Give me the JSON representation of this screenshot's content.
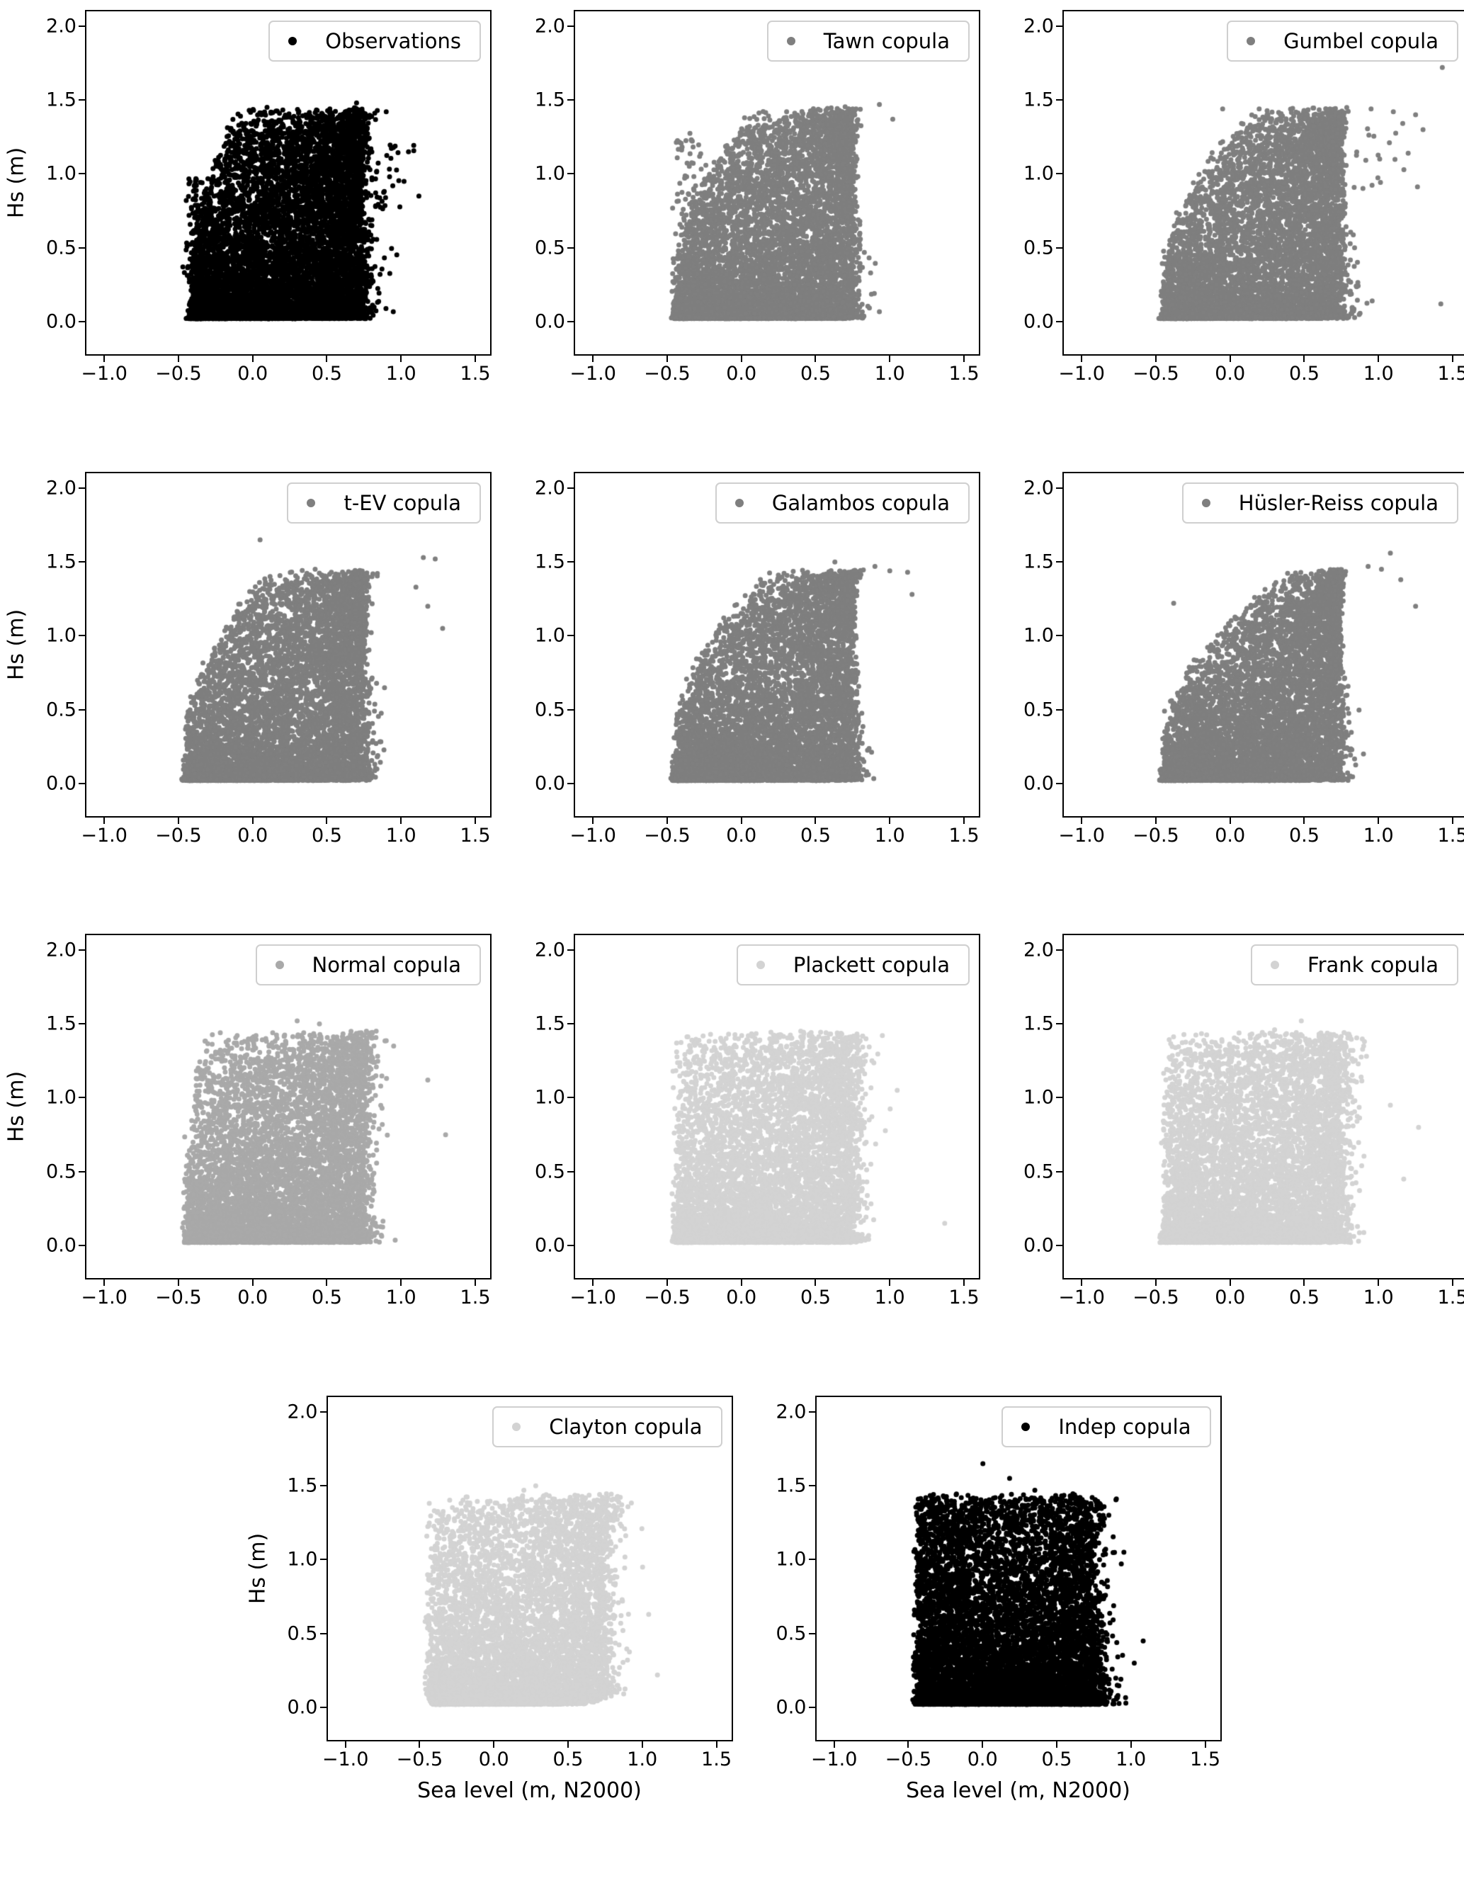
{
  "figure": {
    "background": "#ffffff",
    "description": "Grid of 11 scatter subplots comparing observed significant wave height vs sea level with simulations from ten copula models"
  },
  "axes": {
    "x_label": "Sea level (m, N2000)",
    "y_label": "Hs (m)",
    "xlim": [
      -1.12,
      1.6
    ],
    "ylim": [
      -0.22,
      2.1
    ],
    "x_tick_values": [
      -1.0,
      -0.5,
      0.0,
      0.5,
      1.0,
      1.5
    ],
    "x_tick_labels": [
      "−1.0",
      "−0.5",
      "0.0",
      "0.5",
      "1.0",
      "1.5"
    ],
    "y_tick_values": [
      0.0,
      0.5,
      1.0,
      1.5,
      2.0
    ],
    "y_tick_labels": [
      "0.0",
      "0.5",
      "1.0",
      "1.5",
      "2.0"
    ],
    "grid": false,
    "legend_position": "upper right"
  },
  "layout": {
    "rows": [
      [
        0,
        1,
        2
      ],
      [
        3,
        4,
        5
      ],
      [
        6,
        7,
        8
      ],
      [
        9,
        10
      ]
    ]
  },
  "chart_data": [
    {
      "type": "scatter",
      "name": "Observations",
      "color": "#000000",
      "n": 9500,
      "rho": 0.3,
      "upper_tail": 0.25,
      "lower_tail": 0,
      "y_pow": 2.4,
      "marker_px": 7,
      "x_core": [
        -0.42,
        0.78
      ],
      "y_core": [
        0.02,
        1.45
      ],
      "show_ylabel": true,
      "show_xlabel": false,
      "outliers": [
        [
          0.7,
          1.48
        ],
        [
          0.52,
          1.44
        ],
        [
          0.9,
          1.42
        ],
        [
          1.05,
          1.15
        ],
        [
          1.12,
          0.85
        ],
        [
          1.02,
          0.95
        ]
      ],
      "extras": [
        {
          "n": 140,
          "x": [
            -0.37,
            0.04
          ],
          "y": [
            0.25,
            0.97
          ]
        },
        {
          "n": 40,
          "x": [
            0.88,
            0.1
          ],
          "y": [
            0.75,
            1.2
          ]
        }
      ]
    },
    {
      "type": "scatter",
      "name": "Tawn copula",
      "color": "#7f7f7f",
      "n": 7500,
      "rho": 0.3,
      "upper_tail": 0.45,
      "lower_tail": 0,
      "y_pow": 2.3,
      "marker_px": 7,
      "x_core": [
        -0.46,
        0.8
      ],
      "y_core": [
        0.02,
        1.45
      ],
      "show_ylabel": false,
      "show_xlabel": false,
      "outliers": [
        [
          0.93,
          1.47
        ],
        [
          0.75,
          1.44
        ],
        [
          1.02,
          1.37
        ],
        [
          0.4,
          1.33
        ]
      ],
      "extras": [
        {
          "n": 80,
          "x": [
            -0.35,
            0.07
          ],
          "y": [
            0.35,
            1.28
          ]
        }
      ]
    },
    {
      "type": "scatter",
      "name": "Gumbel copula",
      "color": "#7f7f7f",
      "n": 7500,
      "rho": 0.36,
      "upper_tail": 0.5,
      "lower_tail": 0,
      "y_pow": 2.3,
      "marker_px": 7,
      "x_core": [
        -0.46,
        0.8
      ],
      "y_core": [
        0.02,
        1.45
      ],
      "show_ylabel": false,
      "show_xlabel": false,
      "outliers": [
        [
          1.43,
          1.72
        ],
        [
          -0.05,
          1.44
        ],
        [
          0.95,
          1.44
        ],
        [
          1.1,
          1.42
        ],
        [
          1.25,
          1.4
        ],
        [
          1.3,
          1.3
        ],
        [
          1.2,
          1.14
        ],
        [
          1.42,
          0.12
        ]
      ],
      "extras": [
        {
          "n": 20,
          "x": [
            1.0,
            0.12
          ],
          "y": [
            0.9,
            1.35
          ]
        }
      ]
    },
    {
      "type": "scatter",
      "name": "t-EV copula",
      "color": "#7f7f7f",
      "n": 7500,
      "rho": 0.33,
      "upper_tail": 0.45,
      "lower_tail": 0,
      "y_pow": 2.3,
      "marker_px": 7,
      "x_core": [
        -0.46,
        0.8
      ],
      "y_core": [
        0.02,
        1.45
      ],
      "show_ylabel": true,
      "show_xlabel": false,
      "outliers": [
        [
          0.05,
          1.65
        ],
        [
          1.15,
          1.53
        ],
        [
          1.23,
          1.52
        ],
        [
          1.1,
          1.33
        ],
        [
          1.18,
          1.2
        ],
        [
          -0.02,
          1.3
        ],
        [
          1.28,
          1.05
        ]
      ]
    },
    {
      "type": "scatter",
      "name": "Galambos copula",
      "color": "#7f7f7f",
      "n": 7500,
      "rho": 0.36,
      "upper_tail": 0.5,
      "lower_tail": 0,
      "y_pow": 2.3,
      "marker_px": 7,
      "x_core": [
        -0.46,
        0.8
      ],
      "y_core": [
        0.02,
        1.45
      ],
      "show_ylabel": false,
      "show_xlabel": false,
      "outliers": [
        [
          0.63,
          1.5
        ],
        [
          1.0,
          1.44
        ],
        [
          1.12,
          1.43
        ],
        [
          0.9,
          1.47
        ],
        [
          1.15,
          1.28
        ]
      ]
    },
    {
      "type": "scatter",
      "name": "Hüsler-Reiss copula",
      "color": "#7f7f7f",
      "n": 7500,
      "rho": 0.42,
      "upper_tail": 0.7,
      "lower_tail": 0,
      "y_pow": 2.3,
      "marker_px": 7,
      "x_core": [
        -0.46,
        0.8
      ],
      "y_core": [
        0.02,
        1.45
      ],
      "show_ylabel": false,
      "show_xlabel": false,
      "outliers": [
        [
          1.08,
          1.56
        ],
        [
          0.93,
          1.47
        ],
        [
          1.02,
          1.45
        ],
        [
          1.15,
          1.38
        ],
        [
          1.25,
          1.2
        ],
        [
          -0.38,
          1.22
        ]
      ]
    },
    {
      "type": "scatter",
      "name": "Normal copula",
      "color": "#a9a9a9",
      "n": 7500,
      "rho": 0.3,
      "upper_tail": 0.1,
      "lower_tail": 0,
      "y_pow": 2.3,
      "marker_px": 7,
      "x_core": [
        -0.46,
        0.8
      ],
      "y_core": [
        0.02,
        1.45
      ],
      "show_ylabel": true,
      "show_xlabel": false,
      "outliers": [
        [
          0.3,
          1.52
        ],
        [
          0.45,
          1.5
        ],
        [
          1.18,
          1.12
        ],
        [
          1.3,
          0.75
        ],
        [
          0.95,
          1.35
        ]
      ]
    },
    {
      "type": "scatter",
      "name": "Plackett copula",
      "color": "#d3d3d3",
      "n": 7500,
      "rho": 0.25,
      "upper_tail": 0,
      "lower_tail": 0,
      "y_pow": 2.3,
      "marker_px": 7,
      "x_core": [
        -0.46,
        0.8
      ],
      "y_core": [
        0.02,
        1.45
      ],
      "show_ylabel": false,
      "show_xlabel": false,
      "outliers": [
        [
          0.4,
          1.45
        ],
        [
          0.57,
          1.44
        ],
        [
          0.95,
          1.42
        ],
        [
          1.37,
          0.15
        ],
        [
          1.05,
          1.05
        ],
        [
          0.88,
          1.25
        ]
      ]
    },
    {
      "type": "scatter",
      "name": "Frank copula",
      "color": "#d3d3d3",
      "n": 7500,
      "rho": 0.22,
      "upper_tail": 0,
      "lower_tail": 0,
      "y_pow": 2.3,
      "marker_px": 7,
      "x_core": [
        -0.46,
        0.8
      ],
      "y_core": [
        0.02,
        1.45
      ],
      "show_ylabel": false,
      "show_xlabel": false,
      "outliers": [
        [
          0.48,
          1.52
        ],
        [
          0.3,
          1.46
        ],
        [
          1.27,
          0.8
        ],
        [
          1.17,
          0.45
        ],
        [
          0.9,
          1.35
        ],
        [
          1.08,
          0.95
        ]
      ]
    },
    {
      "type": "scatter",
      "name": "Clayton copula",
      "color": "#d3d3d3",
      "n": 7500,
      "rho": 0.28,
      "upper_tail": 0,
      "lower_tail": 0.5,
      "y_pow": 2.3,
      "marker_px": 7,
      "x_core": [
        -0.46,
        0.8
      ],
      "y_core": [
        0.02,
        1.45
      ],
      "show_ylabel": true,
      "show_xlabel": true,
      "outliers": [
        [
          0.28,
          1.5
        ],
        [
          0.2,
          1.47
        ],
        [
          0.35,
          1.44
        ],
        [
          1.1,
          0.22
        ],
        [
          1.0,
          0.95
        ],
        [
          0.85,
          1.3
        ]
      ]
    },
    {
      "type": "scatter",
      "name": "Indep copula",
      "color": "#000000",
      "n": 9000,
      "rho": 0.0,
      "upper_tail": 0,
      "lower_tail": 0,
      "y_pow": 2.3,
      "marker_px": 7,
      "x_core": [
        -0.46,
        0.8
      ],
      "y_core": [
        0.02,
        1.45
      ],
      "show_ylabel": false,
      "show_xlabel": true,
      "outliers": [
        [
          0.0,
          1.65
        ],
        [
          0.18,
          1.55
        ],
        [
          0.35,
          1.47
        ],
        [
          -0.18,
          1.44
        ],
        [
          1.08,
          0.45
        ],
        [
          0.95,
          1.05
        ],
        [
          1.02,
          0.3
        ]
      ]
    }
  ]
}
